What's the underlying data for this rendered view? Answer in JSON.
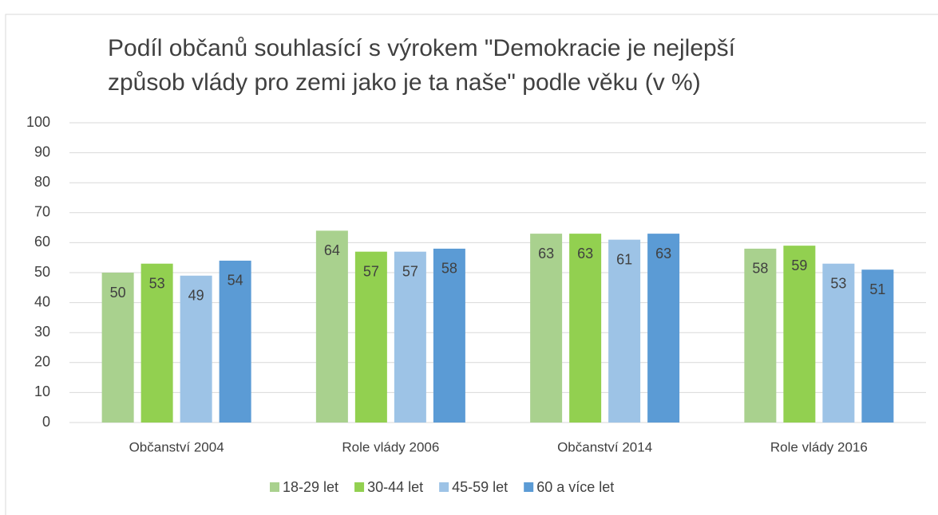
{
  "chart_data": {
    "type": "bar",
    "title": "Podíl občanů souhlasící s výrokem \"Demokracie je nejlepší způsob vlády pro zemi jako je ta naše\" podle věku (v %)",
    "title_lines": [
      "Podíl občanů souhlasící s výrokem \"Demokracie je nejlepší",
      "způsob vlády pro zemi jako je ta naše\" podle věku (v %)"
    ],
    "categories": [
      "Občanství 2004",
      "Role vlády 2006",
      "Občanství 2014",
      "Role vlády 2016"
    ],
    "series": [
      {
        "name": "18-29 let",
        "color": "#a9d18e",
        "values": [
          50,
          64,
          63,
          58
        ]
      },
      {
        "name": "30-44 let",
        "color": "#92d050",
        "values": [
          53,
          57,
          63,
          59
        ]
      },
      {
        "name": "45-59 let",
        "color": "#9dc3e6",
        "values": [
          49,
          57,
          61,
          53
        ]
      },
      {
        "name": "60 a více let",
        "color": "#5b9bd5",
        "values": [
          54,
          58,
          63,
          51
        ]
      }
    ],
    "ylim": [
      0,
      100
    ],
    "yticks": [
      0,
      10,
      20,
      30,
      40,
      50,
      60,
      70,
      80,
      90,
      100
    ],
    "grid": true,
    "legend": "bottom",
    "data_labels": true
  }
}
